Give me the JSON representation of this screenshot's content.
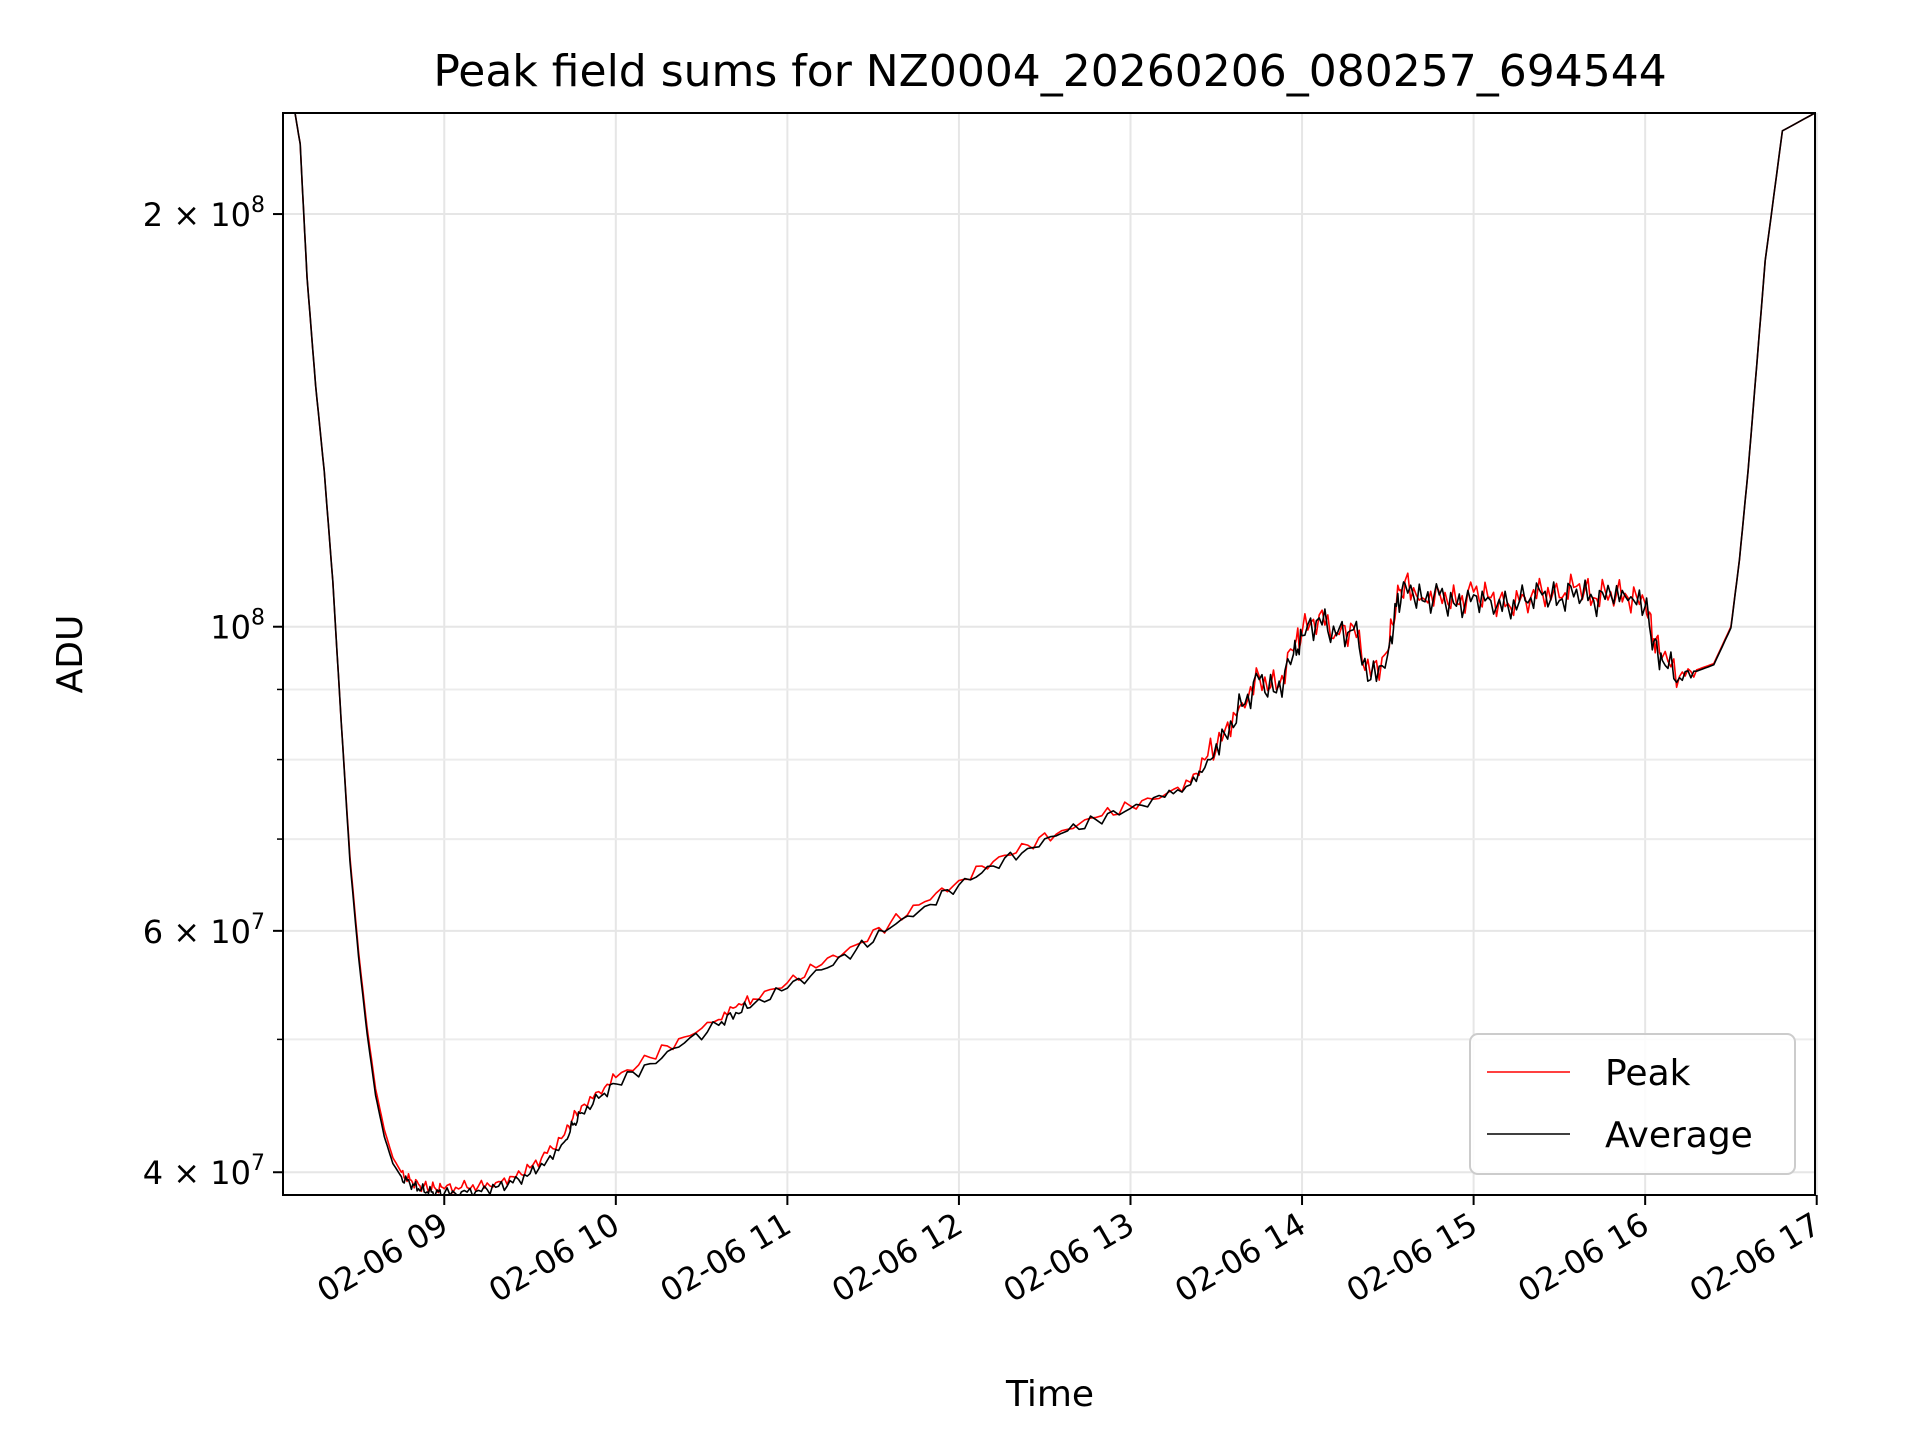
{
  "chart_data": {
    "type": "line",
    "title": "Peak field sums for NZ0004_20260206_080257_694544",
    "xlabel": "Time",
    "ylabel": "ADU",
    "y_scale": "log",
    "ylim": [
      38500000,
      237000000
    ],
    "xlim_hours": [
      8.06,
      16.99
    ],
    "grid": true,
    "legend_location": "lower right",
    "x_ticks": [
      {
        "hour": 9,
        "label": "02-06 09"
      },
      {
        "hour": 10,
        "label": "02-06 10"
      },
      {
        "hour": 11,
        "label": "02-06 11"
      },
      {
        "hour": 12,
        "label": "02-06 12"
      },
      {
        "hour": 13,
        "label": "02-06 13"
      },
      {
        "hour": 14,
        "label": "02-06 14"
      },
      {
        "hour": 15,
        "label": "02-06 15"
      },
      {
        "hour": 16,
        "label": "02-06 16"
      },
      {
        "hour": 17,
        "label": "02-06 17"
      }
    ],
    "y_major_ticks": [
      {
        "value": 40000000,
        "mantissa": "4",
        "exponent": "7"
      },
      {
        "value": 60000000,
        "mantissa": "6",
        "exponent": "7"
      },
      {
        "value": 100000000,
        "mantissa": "",
        "exponent": "8"
      },
      {
        "value": 200000000,
        "mantissa": "2",
        "exponent": "8"
      }
    ],
    "y_minor_ticks": [
      50000000,
      70000000,
      80000000,
      90000000
    ],
    "series": [
      {
        "name": "Peak",
        "color": "#ff0000",
        "x_hours": [
          8.06,
          8.1,
          8.13,
          8.16,
          8.2,
          8.25,
          8.3,
          8.35,
          8.4,
          8.45,
          8.5,
          8.55,
          8.6,
          8.65,
          8.7,
          8.75,
          8.8,
          8.85,
          8.9,
          8.95,
          9.0,
          9.1,
          9.2,
          9.3,
          9.4,
          9.5,
          9.6,
          9.7,
          9.75,
          9.8,
          9.9,
          10.0,
          10.2,
          10.4,
          10.6,
          10.7,
          10.8,
          11.0,
          11.2,
          11.4,
          11.6,
          11.8,
          12.0,
          12.2,
          12.4,
          12.6,
          12.8,
          13.0,
          13.2,
          13.35,
          13.45,
          13.55,
          13.65,
          13.75,
          13.85,
          13.95,
          14.0,
          14.1,
          14.2,
          14.3,
          14.4,
          14.5,
          14.55,
          14.6,
          14.7,
          14.8,
          14.9,
          15.0,
          15.1,
          15.2,
          15.3,
          15.4,
          15.5,
          15.6,
          15.7,
          15.8,
          15.9,
          16.0,
          16.05,
          16.1,
          16.2,
          16.3,
          16.4,
          16.5,
          16.55,
          16.6,
          16.65,
          16.7,
          16.8,
          16.99
        ],
        "values": [
          237000000,
          237000000,
          237000000,
          225000000,
          180000000,
          150000000,
          130000000,
          108000000,
          85000000,
          68000000,
          58000000,
          51000000,
          46000000,
          43000000,
          41000000,
          40000000,
          39500000,
          39200000,
          39000000,
          38900000,
          38900000,
          39000000,
          39100000,
          39300000,
          39700000,
          40300000,
          41300000,
          42600000,
          43800000,
          44700000,
          45800000,
          46900000,
          48500000,
          50200000,
          51700000,
          52800000,
          53500000,
          55000000,
          56700000,
          58600000,
          60800000,
          63000000,
          65300000,
          67400000,
          69300000,
          71000000,
          72600000,
          74000000,
          75400000,
          77000000,
          80500000,
          84000000,
          88000000,
          92000000,
          90000000,
          96000000,
          99000000,
          102000000,
          99000000,
          100000000,
          92000000,
          96000000,
          104000000,
          108000000,
          105000000,
          106000000,
          104000000,
          106000000,
          105000000,
          104000000,
          105000000,
          106000000,
          105000000,
          107000000,
          105000000,
          106000000,
          105000000,
          104000000,
          98000000,
          95000000,
          92000000,
          93000000,
          94000000,
          100000000,
          112000000,
          130000000,
          155000000,
          185000000,
          230000000,
          237000000
        ]
      },
      {
        "name": "Average",
        "color": "#000000",
        "x_hours": [
          8.06,
          8.1,
          8.13,
          8.16,
          8.2,
          8.25,
          8.3,
          8.35,
          8.4,
          8.45,
          8.5,
          8.55,
          8.6,
          8.65,
          8.7,
          8.75,
          8.8,
          8.85,
          8.9,
          8.95,
          9.0,
          9.1,
          9.2,
          9.3,
          9.4,
          9.5,
          9.6,
          9.7,
          9.75,
          9.8,
          9.9,
          10.0,
          10.2,
          10.4,
          10.6,
          10.7,
          10.8,
          11.0,
          11.2,
          11.4,
          11.6,
          11.8,
          12.0,
          12.2,
          12.4,
          12.6,
          12.8,
          13.0,
          13.2,
          13.35,
          13.45,
          13.55,
          13.65,
          13.75,
          13.85,
          13.95,
          14.0,
          14.1,
          14.2,
          14.3,
          14.4,
          14.5,
          14.55,
          14.6,
          14.7,
          14.8,
          14.9,
          15.0,
          15.1,
          15.2,
          15.3,
          15.4,
          15.5,
          15.6,
          15.7,
          15.8,
          15.9,
          16.0,
          16.05,
          16.1,
          16.2,
          16.3,
          16.4,
          16.5,
          16.55,
          16.6,
          16.65,
          16.7,
          16.8,
          16.99
        ],
        "values": [
          237000000,
          237000000,
          237000000,
          225000000,
          180000000,
          150000000,
          130000000,
          108000000,
          85000000,
          67500000,
          57500000,
          50500000,
          45500000,
          42500000,
          40600000,
          39700000,
          39200000,
          38900000,
          38700000,
          38600000,
          38600000,
          38700000,
          38800000,
          39000000,
          39300000,
          39900000,
          40800000,
          42100000,
          43300000,
          44200000,
          45300000,
          46400000,
          48000000,
          49700000,
          51200000,
          52300000,
          53000000,
          54500000,
          56200000,
          58100000,
          60300000,
          62500000,
          64800000,
          66900000,
          68900000,
          70700000,
          72300000,
          73700000,
          75100000,
          76700000,
          80000000,
          83500000,
          87500000,
          91500000,
          89500000,
          95500000,
          98500000,
          101500000,
          98500000,
          99500000,
          91500000,
          95500000,
          103500000,
          107500000,
          104500000,
          105500000,
          103500000,
          105500000,
          104500000,
          103500000,
          104500000,
          105500000,
          104500000,
          106500000,
          104500000,
          105500000,
          104500000,
          103500000,
          97500000,
          94500000,
          91800000,
          92800000,
          93800000,
          99800000,
          112000000,
          130000000,
          155000000,
          185000000,
          230000000,
          237000000
        ]
      }
    ]
  }
}
